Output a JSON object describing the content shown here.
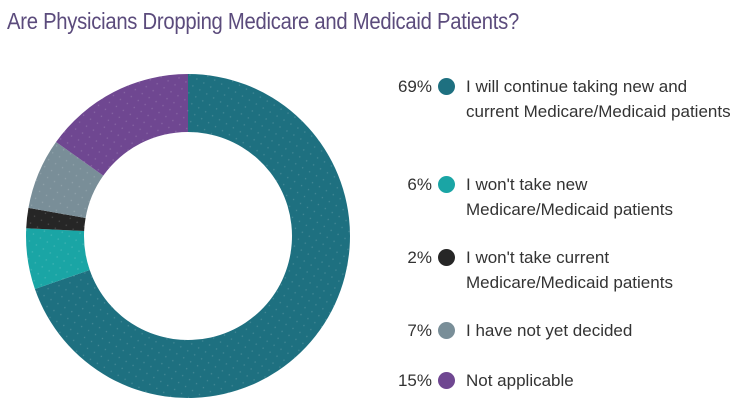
{
  "chart_data": {
    "type": "pie",
    "variant": "donut",
    "title": "Are Physicians Dropping Medicare and Medicaid Patients?",
    "start": "top",
    "direction": "clockwise",
    "slices": [
      {
        "label": "I will continue taking new and current Medicare/Medicaid patients",
        "value": 69,
        "display": "69%",
        "color": "#1e7080"
      },
      {
        "label": "I won't take new Medicare/Medicaid patients",
        "value": 6,
        "display": "6%",
        "color": "#1aa5a5"
      },
      {
        "label": "I won't take current Medicare/Medicaid patients",
        "value": 2,
        "display": "2%",
        "color": "#262626"
      },
      {
        "label": "I have not yet decided",
        "value": 7,
        "display": "7%",
        "color": "#798e98"
      },
      {
        "label": "Not applicable",
        "value": 15,
        "display": "15%",
        "color": "#6f4791"
      }
    ],
    "legend": "right"
  }
}
